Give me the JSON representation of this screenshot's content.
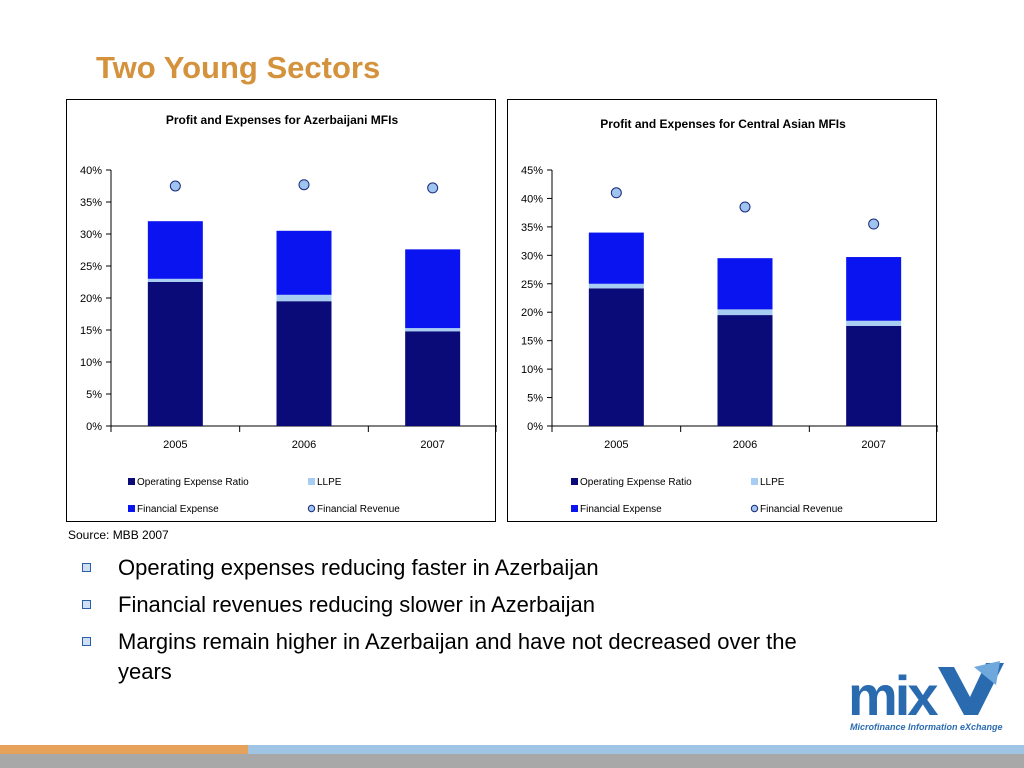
{
  "slide": {
    "title": "Two Young Sectors",
    "source": "Source: MBB 2007",
    "bullets": [
      "Operating expenses reducing faster in Azerbaijan",
      "Financial revenues reducing slower in Azerbaijan",
      "Margins remain higher in Azerbaijan  and have not decreased over the years"
    ],
    "logo_text": "Microfinance Information eXchange",
    "logo_name": "mix"
  },
  "colors": {
    "operating_expense": "#0a0a78",
    "llpe": "#a8cdf2",
    "financial_expense": "#0a14f0",
    "financial_revenue_fill": "#a0c4f0",
    "financial_revenue_stroke": "#1a2a7a",
    "title": "#d4923c"
  },
  "chart_data": [
    {
      "type": "bar",
      "stacked": true,
      "title": "Profit and Expenses for Azerbaijani MFIs",
      "categories": [
        "2005",
        "2006",
        "2007"
      ],
      "ylim": [
        0,
        40
      ],
      "yticks": [
        "0%",
        "5%",
        "10%",
        "15%",
        "20%",
        "25%",
        "30%",
        "35%",
        "40%"
      ],
      "series": [
        {
          "name": "Operating Expense Ratio",
          "values": [
            22.5,
            19.5,
            14.8
          ]
        },
        {
          "name": "LLPE",
          "values": [
            0.5,
            1.0,
            0.5
          ]
        },
        {
          "name": "Financial Expense",
          "values": [
            9.0,
            10.0,
            12.3
          ]
        }
      ],
      "markers": {
        "name": "Financial Revenue",
        "values": [
          37.5,
          37.7,
          37.2
        ]
      },
      "legend": [
        "Operating Expense Ratio",
        "LLPE",
        "Financial Expense",
        "Financial Revenue"
      ]
    },
    {
      "type": "bar",
      "stacked": true,
      "title": "Profit and Expenses for Central Asian MFIs",
      "categories": [
        "2005",
        "2006",
        "2007"
      ],
      "ylim": [
        0,
        45
      ],
      "yticks": [
        "0%",
        "5%",
        "10%",
        "15%",
        "20%",
        "25%",
        "30%",
        "35%",
        "40%",
        "45%"
      ],
      "series": [
        {
          "name": "Operating Expense Ratio",
          "values": [
            24.2,
            19.5,
            17.6
          ]
        },
        {
          "name": "LLPE",
          "values": [
            0.8,
            1.0,
            0.9
          ]
        },
        {
          "name": "Financial Expense",
          "values": [
            9.0,
            9.0,
            11.2
          ]
        }
      ],
      "markers": {
        "name": "Financial Revenue",
        "values": [
          41.0,
          38.5,
          35.5
        ]
      },
      "legend": [
        "Operating Expense Ratio",
        "LLPE",
        "Financial Expense",
        "Financial Revenue"
      ]
    }
  ]
}
